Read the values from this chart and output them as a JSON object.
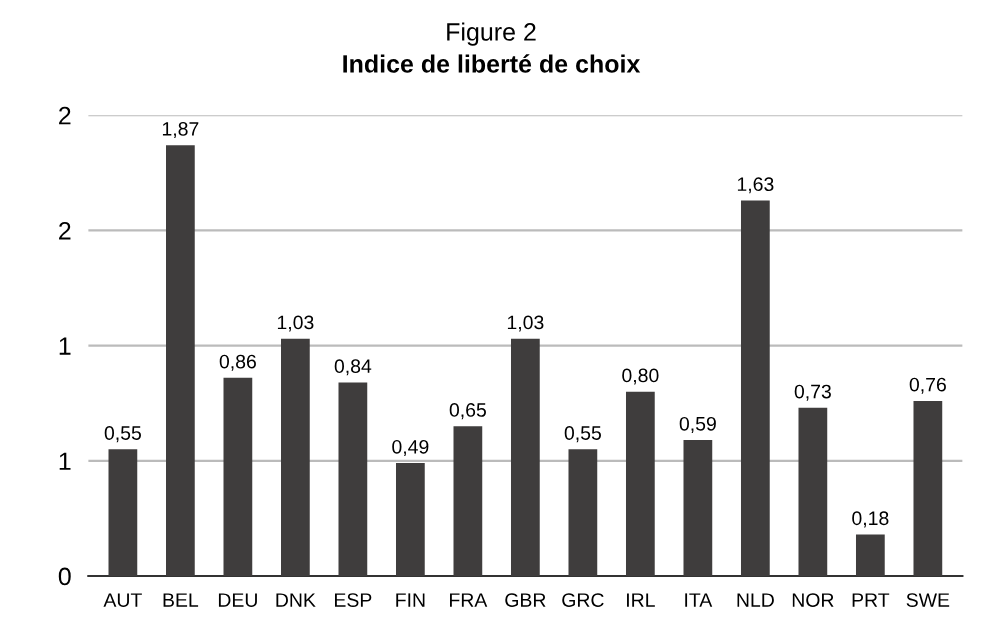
{
  "chart_data": {
    "type": "bar",
    "title": "Figure 2",
    "subtitle": "Indice de liberté de choix",
    "categories": [
      "AUT",
      "BEL",
      "DEU",
      "DNK",
      "ESP",
      "FIN",
      "FRA",
      "GBR",
      "GRC",
      "IRL",
      "ITA",
      "NLD",
      "NOR",
      "PRT",
      "SWE"
    ],
    "values": [
      0.55,
      1.87,
      0.86,
      1.03,
      0.84,
      0.49,
      0.65,
      1.03,
      0.55,
      0.8,
      0.59,
      1.63,
      0.73,
      0.18,
      0.76
    ],
    "value_labels": [
      "0,55",
      "1,87",
      "0,86",
      "1,03",
      "0,84",
      "0,49",
      "0,65",
      "1,03",
      "0,55",
      "0,80",
      "0,59",
      "1,63",
      "0,73",
      "0,18",
      "0,76"
    ],
    "color": "#3f3d3d",
    "ylim": [
      0,
      2
    ],
    "yticks": [
      0,
      {
        "value": 0.5,
        "label": "1"
      },
      1,
      {
        "value": 1.5,
        "label": "2"
      },
      2
    ],
    "grid": "y"
  }
}
